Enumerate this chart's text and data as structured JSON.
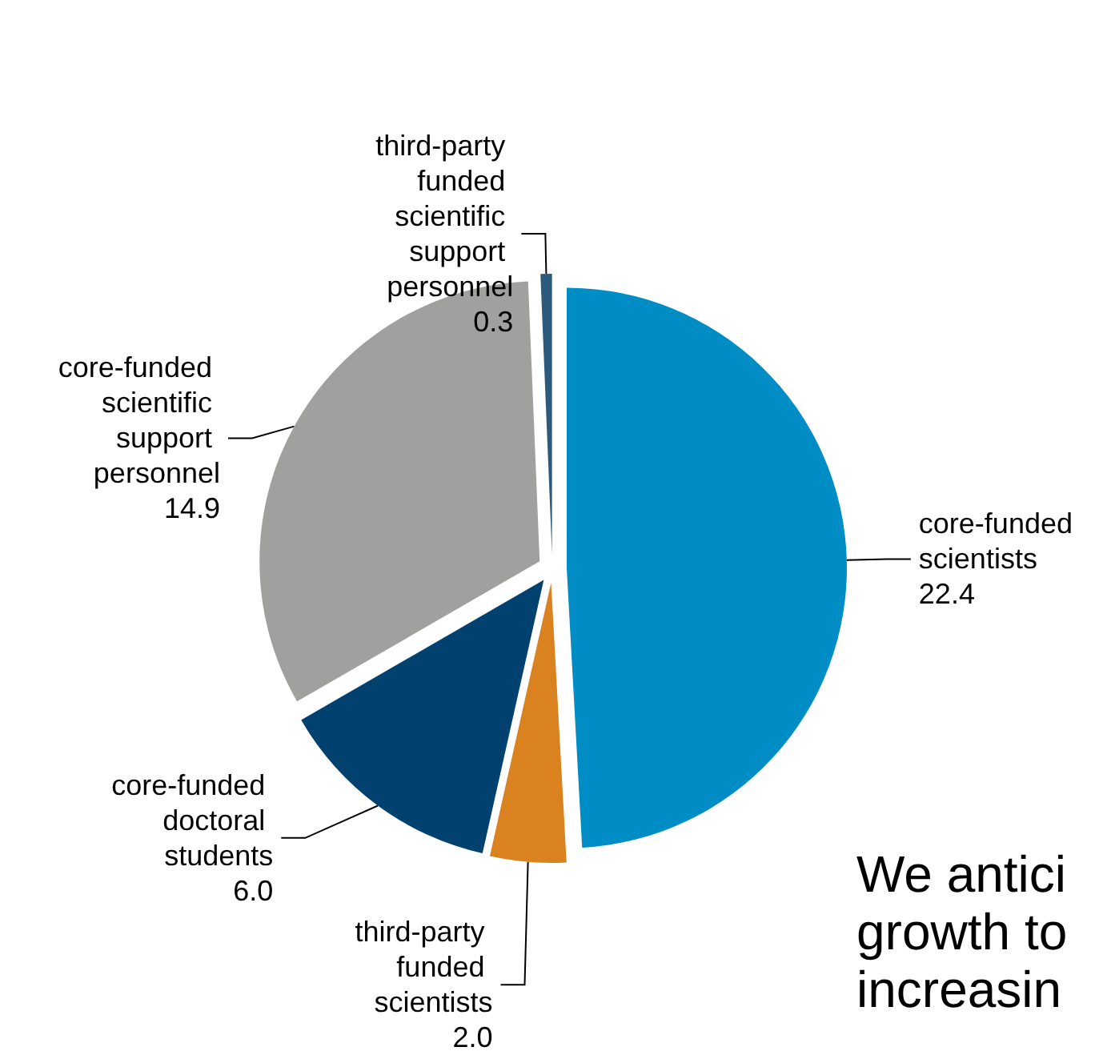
{
  "chart_data": {
    "type": "pie",
    "categories": [
      "core-funded scientists",
      "third-party funded scientists",
      "core-funded doctoral students",
      "core-funded scientific support personnel",
      "third-party funded scientific support personnel"
    ],
    "values": [
      22.4,
      2.0,
      6.0,
      14.9,
      0.3
    ],
    "value_labels": [
      "22.4",
      "2.0",
      "6.0",
      "14.9",
      "0.3"
    ],
    "colors": [
      "#008cc5",
      "#d9821f",
      "#00416f",
      "#a0a19e",
      "#2d5a7a"
    ],
    "legend": false,
    "annotations": [
      "We antici\ngrowth to\nincreasin"
    ]
  }
}
